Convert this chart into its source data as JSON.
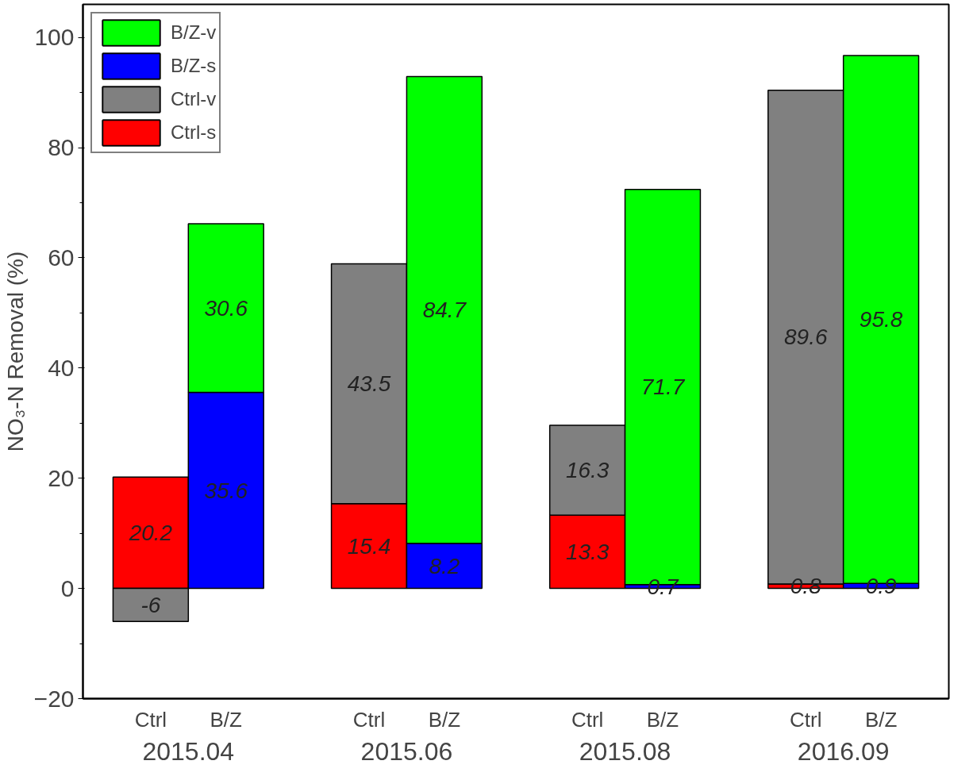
{
  "chart_data": {
    "type": "bar",
    "stacked": true,
    "ylabel": "NO₃-N Removal (%)",
    "categories": [
      "Ctrl",
      "B/Z",
      "Ctrl",
      "B/Z",
      "Ctrl",
      "B/Z",
      "Ctrl",
      "B/Z"
    ],
    "annotations": [
      "2015.04",
      "2015.06",
      "2015.08",
      "2016.09"
    ],
    "series": [
      {
        "name": "Ctrl-s",
        "color": "#ff0000",
        "values": [
          20.2,
          null,
          15.4,
          null,
          13.3,
          null,
          0.8,
          null
        ]
      },
      {
        "name": "Ctrl-v",
        "color": "#808080",
        "values": [
          -6,
          null,
          43.5,
          null,
          16.3,
          null,
          89.6,
          null
        ]
      },
      {
        "name": "B/Z-s",
        "color": "#0000ff",
        "values": [
          null,
          35.6,
          null,
          8.2,
          null,
          0.7,
          null,
          0.9
        ]
      },
      {
        "name": "B/Z-v",
        "color": "#00ff00",
        "values": [
          null,
          30.6,
          null,
          84.7,
          null,
          71.7,
          null,
          95.8
        ]
      }
    ],
    "ylim": [
      -20,
      106
    ],
    "yticks": [
      -20,
      0,
      20,
      40,
      60,
      80,
      100
    ],
    "data_labels": true,
    "legend": "top left",
    "grid": false
  }
}
